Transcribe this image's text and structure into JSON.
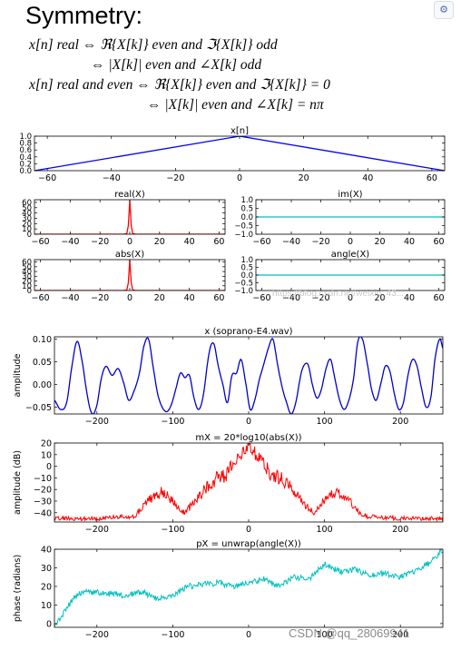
{
  "heading": "Symmetry:",
  "equations": [
    "x[n] real  ⇔  ℜ{X[k]} even  and  ℑ{X[k]} odd",
    "⇔  |X[k]| even  and  ∠X[k] odd",
    "x[n] real and even  ⇔  ℜ{X[k]} even  and  ℑ{X[k]} = 0",
    "⇔  |X[k]| even  and  ∠X[k] = nπ"
  ],
  "watermark": "CSDN @qq_28069941",
  "watermark_faint": "https://blog.csdn.net/weixin_43...",
  "corner_icon": "settings-icon",
  "chart_data": [
    {
      "id": "xn",
      "type": "line",
      "title": "x[n]",
      "color": "#0000ff",
      "xlim": [
        -64,
        64
      ],
      "ylim": [
        0.0,
        1.0
      ],
      "xticks": [
        -60,
        -40,
        -20,
        0,
        20,
        40,
        60
      ],
      "xtick_labels": [
        "−60",
        "−40",
        "−20",
        "0",
        "20",
        "40",
        "60"
      ],
      "yticks": [
        0.0,
        0.2,
        0.4,
        0.6,
        0.8,
        1.0
      ],
      "ytick_labels": [
        "0.0",
        "0.2",
        "0.4",
        "0.6",
        "0.8",
        "1.0"
      ],
      "x": [
        -64,
        0,
        64
      ],
      "y": [
        0.0,
        1.0,
        0.0
      ]
    },
    {
      "id": "realX",
      "type": "line",
      "title": "real(X)",
      "color": "#ff0000",
      "xlim": [
        -64,
        64
      ],
      "ylim": [
        0,
        65
      ],
      "xticks": [
        -60,
        -40,
        -20,
        0,
        20,
        40,
        60
      ],
      "xtick_labels": [
        "−60",
        "−40",
        "−20",
        "0",
        "20",
        "40",
        "60"
      ],
      "yticks": [
        0,
        10,
        20,
        30,
        40,
        50,
        60
      ],
      "ytick_labels": [
        "0",
        "10",
        "20",
        "30",
        "40",
        "50",
        "60"
      ],
      "x": [
        -64,
        -4,
        -3,
        -2,
        -1,
        0,
        1,
        2,
        3,
        4,
        64
      ],
      "y": [
        0,
        0,
        0.5,
        1,
        16,
        64,
        16,
        1,
        0.5,
        0,
        0
      ]
    },
    {
      "id": "imX",
      "type": "line",
      "title": "im(X)",
      "color": "#00bfbf",
      "xlim": [
        -64,
        64
      ],
      "ylim": [
        -1.0,
        1.0
      ],
      "xticks": [
        -60,
        -40,
        -20,
        0,
        20,
        40,
        60
      ],
      "xtick_labels": [
        "−60",
        "−40",
        "−20",
        "0",
        "20",
        "40",
        "60"
      ],
      "yticks": [
        -1.0,
        -0.5,
        0.0,
        0.5,
        1.0
      ],
      "ytick_labels": [
        "−1.0",
        "−0.5",
        "0.0",
        "0.5",
        "1.0"
      ],
      "x": [
        -64,
        64
      ],
      "y": [
        0.0,
        0.0
      ]
    },
    {
      "id": "absX",
      "type": "line",
      "title": "abs(X)",
      "color": "#ff0000",
      "xlim": [
        -64,
        64
      ],
      "ylim": [
        0,
        65
      ],
      "xticks": [
        -60,
        -40,
        -20,
        0,
        20,
        40,
        60
      ],
      "xtick_labels": [
        "−60",
        "−40",
        "−20",
        "0",
        "20",
        "40",
        "60"
      ],
      "yticks": [
        0,
        10,
        20,
        30,
        40,
        50,
        60
      ],
      "ytick_labels": [
        "0",
        "10",
        "20",
        "30",
        "40",
        "50",
        "60"
      ],
      "x": [
        -64,
        -4,
        -3,
        -2,
        -1,
        0,
        1,
        2,
        3,
        4,
        64
      ],
      "y": [
        0,
        0,
        0.5,
        1,
        16,
        64,
        16,
        1,
        0.5,
        0,
        0
      ]
    },
    {
      "id": "angleX",
      "type": "line",
      "title": "angle(X)",
      "color": "#00bfbf",
      "xlim": [
        -64,
        64
      ],
      "ylim": [
        -1.0,
        1.0
      ],
      "xticks": [
        -60,
        -40,
        -20,
        0,
        20,
        40,
        60
      ],
      "xtick_labels": [
        "−60",
        "−40",
        "−20",
        "0",
        "20",
        "40",
        "60"
      ],
      "yticks": [
        -1.0,
        -0.5,
        0.0,
        0.5,
        1.0
      ],
      "ytick_labels": [
        "−1.0",
        "−0.5",
        "0.0",
        "0.5",
        "1.0"
      ],
      "x": [
        -64,
        64
      ],
      "y": [
        0.0,
        0.0
      ]
    },
    {
      "id": "soprano",
      "type": "line",
      "title": "x (soprano-E4.wav)",
      "ylabel": "amplitude",
      "color": "#0000cc",
      "xlim": [
        -256,
        256
      ],
      "ylim": [
        -0.065,
        0.105
      ],
      "xticks": [
        -200,
        -100,
        0,
        100,
        200
      ],
      "xtick_labels": [
        "−200",
        "−100",
        "0",
        "100",
        "200"
      ],
      "yticks": [
        -0.05,
        0.0,
        0.05,
        0.1
      ],
      "ytick_labels": [
        "−0.05",
        "0.00",
        "0.05",
        "0.10"
      ],
      "x": [
        -256,
        -248,
        -240,
        -232,
        -226,
        -220,
        -212,
        -206,
        -200,
        -194,
        -188,
        -180,
        -172,
        -165,
        -158,
        -150,
        -144,
        -138,
        -132,
        -126,
        -120,
        -114,
        -108,
        -102,
        -96,
        -90,
        -84,
        -78,
        -72,
        -66,
        -60,
        -52,
        -46,
        -40,
        -34,
        -28,
        -22,
        -16,
        -10,
        -4,
        2,
        8,
        14,
        20,
        26,
        32,
        38,
        44,
        50,
        56,
        62,
        70,
        78,
        84,
        90,
        96,
        102,
        108,
        114,
        120,
        126,
        132,
        138,
        144,
        150,
        156,
        162,
        168,
        174,
        180,
        186,
        192,
        198,
        204,
        210,
        216,
        222,
        228,
        234,
        240,
        246,
        252,
        256
      ],
      "y": [
        -0.035,
        -0.055,
        -0.04,
        0.05,
        0.095,
        0.055,
        -0.03,
        -0.065,
        -0.045,
        0.015,
        0.04,
        0.02,
        0.035,
        0.005,
        -0.035,
        -0.01,
        0.025,
        0.085,
        0.1,
        0.04,
        -0.02,
        -0.05,
        -0.06,
        -0.045,
        -0.01,
        0.025,
        0.015,
        0.02,
        -0.03,
        -0.055,
        -0.025,
        0.07,
        0.09,
        0.04,
        0.0,
        -0.04,
        0.02,
        0.025,
        0.055,
        0.005,
        -0.055,
        -0.035,
        0.01,
        0.045,
        0.08,
        0.1,
        0.045,
        -0.005,
        -0.04,
        -0.065,
        -0.04,
        0.03,
        0.045,
        0.0,
        -0.03,
        -0.01,
        0.035,
        0.055,
        0.01,
        -0.035,
        -0.055,
        -0.035,
        0.01,
        0.095,
        0.1,
        0.05,
        -0.01,
        -0.035,
        0.0,
        0.04,
        0.03,
        -0.02,
        -0.055,
        -0.04,
        0.02,
        0.055,
        0.04,
        -0.01,
        -0.05,
        -0.03,
        0.06,
        0.1,
        0.08
      ]
    },
    {
      "id": "mX",
      "type": "line",
      "title": "mX = 20*log10(abs(X))",
      "ylabel": "amplitude (dB)",
      "color": "#ff0000",
      "xlim": [
        -256,
        256
      ],
      "ylim": [
        -48,
        20
      ],
      "xticks": [
        -200,
        -100,
        0,
        100,
        200
      ],
      "xtick_labels": [
        "−200",
        "−100",
        "0",
        "100",
        "200"
      ],
      "yticks": [
        -40,
        -30,
        -20,
        -10,
        0,
        10,
        20
      ],
      "ytick_labels": [
        "−40",
        "−30",
        "−20",
        "−10",
        "0",
        "10",
        "20"
      ],
      "noise": true,
      "x": [
        -256,
        -200,
        -150,
        -130,
        -115,
        -100,
        -85,
        -70,
        -55,
        -42,
        -30,
        -20,
        -10,
        -5,
        0,
        5,
        10,
        20,
        30,
        42,
        55,
        70,
        85,
        100,
        115,
        130,
        150,
        200,
        256
      ],
      "y": [
        -45,
        -45,
        -43,
        -28,
        -22,
        -30,
        -40,
        -30,
        -18,
        -10,
        -8,
        2,
        10,
        14,
        20,
        14,
        10,
        2,
        -8,
        -10,
        -18,
        -30,
        -40,
        -30,
        -22,
        -28,
        -43,
        -45,
        -45
      ]
    },
    {
      "id": "pX",
      "type": "line",
      "title": "pX = unwrap(angle(X))",
      "ylabel": "phase (radians)",
      "color": "#00bfbf",
      "xlim": [
        -256,
        256
      ],
      "ylim": [
        -2,
        40
      ],
      "xticks": [
        -200,
        -100,
        0,
        100,
        200
      ],
      "xtick_labels": [
        "−200",
        "−100",
        "0",
        "100",
        "200"
      ],
      "yticks": [
        0,
        10,
        20,
        30,
        40
      ],
      "ytick_labels": [
        "0",
        "10",
        "20",
        "30",
        "40"
      ],
      "noise": true,
      "x": [
        -256,
        -250,
        -240,
        -230,
        -220,
        -200,
        -180,
        -160,
        -140,
        -120,
        -100,
        -80,
        -60,
        -40,
        -20,
        0,
        20,
        40,
        60,
        80,
        100,
        120,
        140,
        160,
        180,
        200,
        220,
        240,
        256
      ],
      "y": [
        0,
        2,
        8,
        14,
        17,
        17,
        16,
        15,
        17,
        13,
        15,
        20,
        21,
        22,
        20,
        22,
        24,
        20,
        25,
        24,
        32,
        28,
        29,
        26,
        27,
        25,
        28,
        33,
        40
      ]
    }
  ]
}
